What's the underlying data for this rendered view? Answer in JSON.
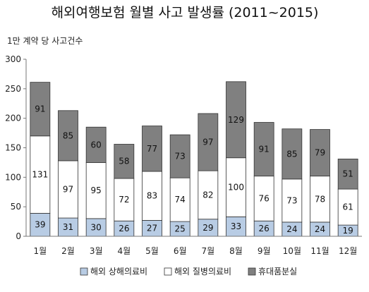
{
  "chart_data": {
    "type": "bar",
    "stacked": true,
    "title": "해외여행보험 월별 사고 발생률 (2011~2015)",
    "ylabel": "1만 계약 당 사고건수",
    "ylim": [
      0,
      300
    ],
    "yticks": [
      0,
      50,
      100,
      150,
      200,
      250,
      300
    ],
    "grid": false,
    "legend_position": "bottom",
    "categories": [
      "1월",
      "2월",
      "3월",
      "4월",
      "5월",
      "6월",
      "7월",
      "8월",
      "9월",
      "10월",
      "11월",
      "12월"
    ],
    "series": [
      {
        "name": "해외 상해의료비",
        "color": "#b8cce4",
        "values": [
          39,
          31,
          30,
          26,
          27,
          25,
          29,
          33,
          26,
          24,
          24,
          19
        ]
      },
      {
        "name": "해외 질병의료비",
        "color": "#ffffff",
        "values": [
          131,
          97,
          95,
          72,
          83,
          74,
          82,
          100,
          76,
          73,
          78,
          61
        ]
      },
      {
        "name": "휴대품분실",
        "color": "#808080",
        "values": [
          91,
          85,
          60,
          58,
          77,
          73,
          97,
          129,
          91,
          85,
          79,
          51
        ]
      }
    ]
  }
}
